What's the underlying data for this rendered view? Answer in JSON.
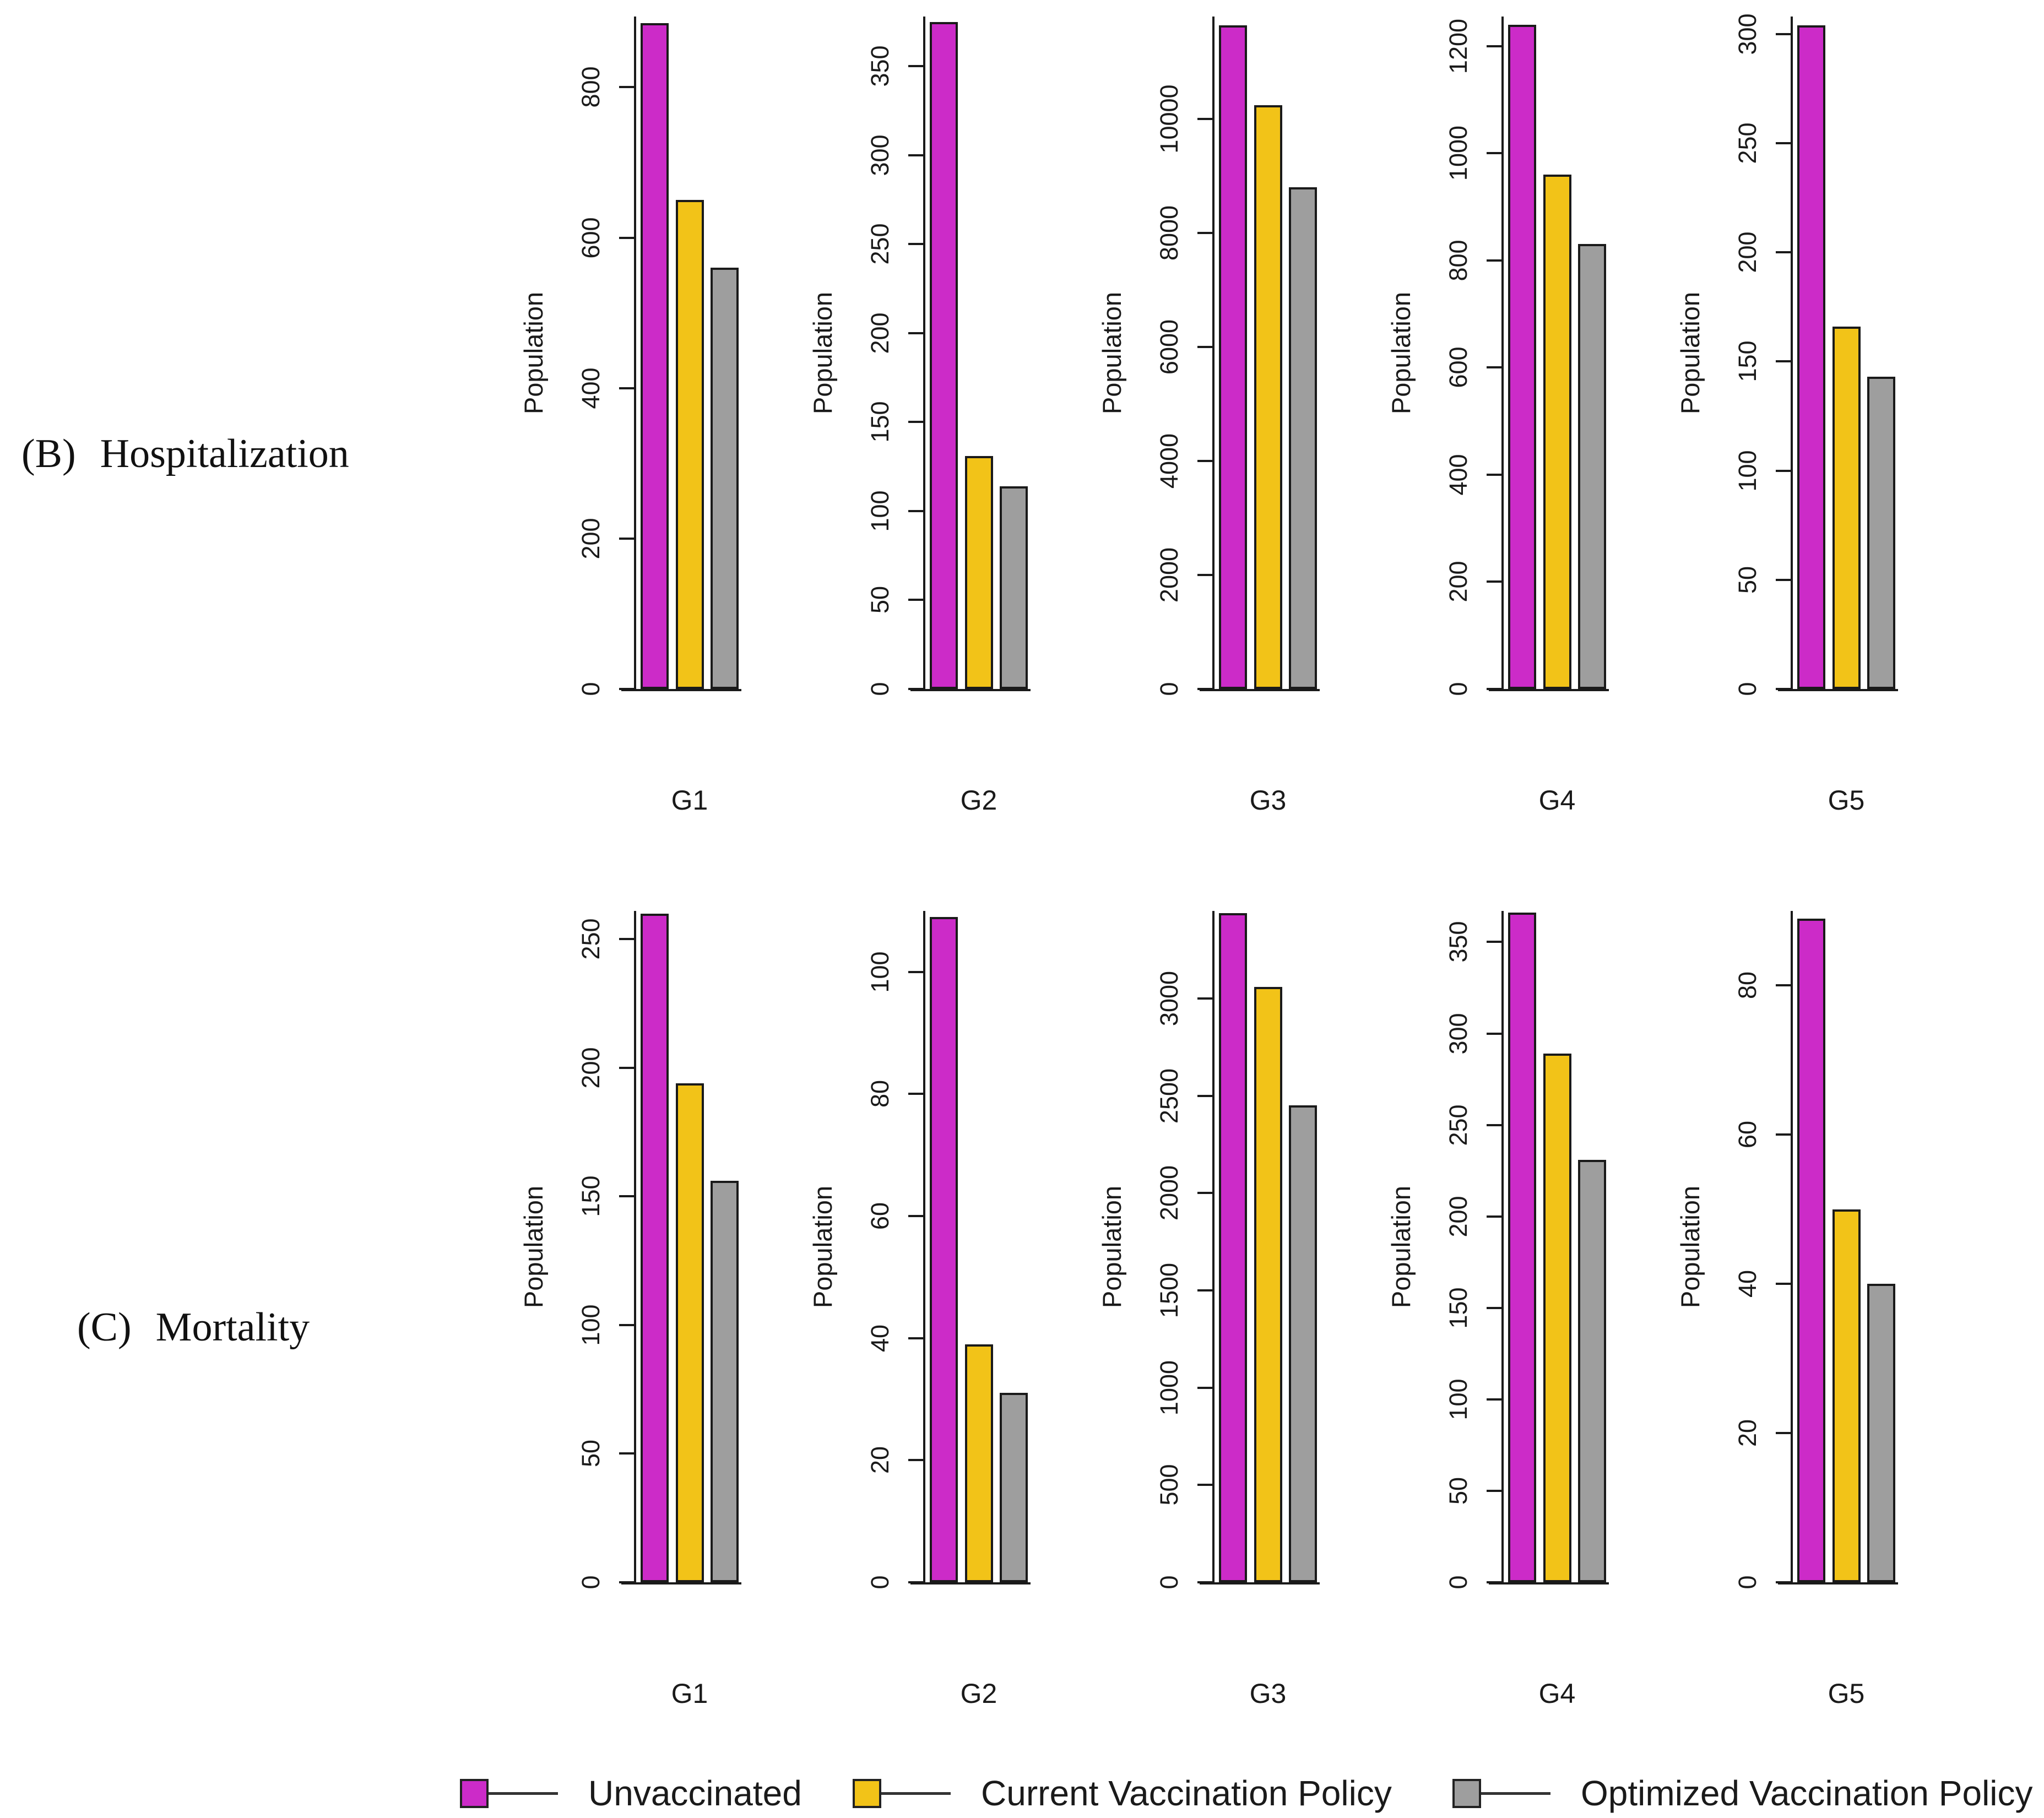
{
  "legend": {
    "items": [
      {
        "label": "Unvaccinated",
        "color": "#CC2BC8"
      },
      {
        "label": "Current Vaccination Policy",
        "color": "#F2C318"
      },
      {
        "label": "Optimized Vaccination Policy",
        "color": "#9E9E9E"
      }
    ]
  },
  "chart_data": [
    {
      "type": "bar",
      "panel_label": "(B)",
      "title": "Hospitalization",
      "ylabel": "Population",
      "categories": [
        "G1",
        "G2",
        "G3",
        "G4",
        "G5"
      ],
      "series": [
        {
          "name": "Unvaccinated",
          "color": "#CC2BC8",
          "values": [
            885,
            375,
            11650,
            1240,
            304
          ]
        },
        {
          "name": "Current Vaccination Policy",
          "color": "#F2C318",
          "values": [
            650,
            131,
            10240,
            960,
            166
          ]
        },
        {
          "name": "Optimized Vaccination Policy",
          "color": "#9E9E9E",
          "values": [
            560,
            114,
            8800,
            830,
            143
          ]
        }
      ],
      "panels": [
        {
          "category": "G1",
          "ticks": [
            0,
            200,
            400,
            600,
            800
          ],
          "ymax": 894
        },
        {
          "category": "G2",
          "ticks": [
            0,
            50,
            100,
            150,
            200,
            250,
            300,
            350
          ],
          "ymax": 378
        },
        {
          "category": "G3",
          "ticks": [
            0,
            2000,
            4000,
            6000,
            8000,
            10000
          ],
          "ymax": 11800
        },
        {
          "category": "G4",
          "ticks": [
            0,
            200,
            400,
            600,
            800,
            1000,
            1200
          ],
          "ymax": 1255
        },
        {
          "category": "G5",
          "ticks": [
            0,
            50,
            100,
            150,
            200,
            250,
            300
          ],
          "ymax": 308
        }
      ],
      "grid": false,
      "legend_position": "bottom"
    },
    {
      "type": "bar",
      "panel_label": "(C)",
      "title": "Mortality",
      "ylabel": "Population",
      "categories": [
        "G1",
        "G2",
        "G3",
        "G4",
        "G5"
      ],
      "series": [
        {
          "name": "Unvaccinated",
          "color": "#CC2BC8",
          "values": [
            260,
            109,
            3440,
            366,
            89
          ]
        },
        {
          "name": "Current Vaccination Policy",
          "color": "#F2C318",
          "values": [
            194,
            39,
            3060,
            289,
            50
          ]
        },
        {
          "name": "Optimized Vaccination Policy",
          "color": "#9E9E9E",
          "values": [
            156,
            31,
            2450,
            231,
            40
          ]
        }
      ],
      "panels": [
        {
          "category": "G1",
          "ticks": [
            0,
            50,
            100,
            150,
            200,
            250
          ],
          "ymax": 261
        },
        {
          "category": "G2",
          "ticks": [
            0,
            20,
            40,
            60,
            80,
            100
          ],
          "ymax": 110
        },
        {
          "category": "G3",
          "ticks": [
            0,
            500,
            1000,
            1500,
            2000,
            2500,
            3000
          ],
          "ymax": 3450
        },
        {
          "category": "G4",
          "ticks": [
            0,
            50,
            100,
            150,
            200,
            250,
            300,
            350
          ],
          "ymax": 367
        },
        {
          "category": "G5",
          "ticks": [
            0,
            20,
            40,
            60,
            80
          ],
          "ymax": 90
        }
      ],
      "grid": false,
      "legend_position": "bottom"
    }
  ]
}
